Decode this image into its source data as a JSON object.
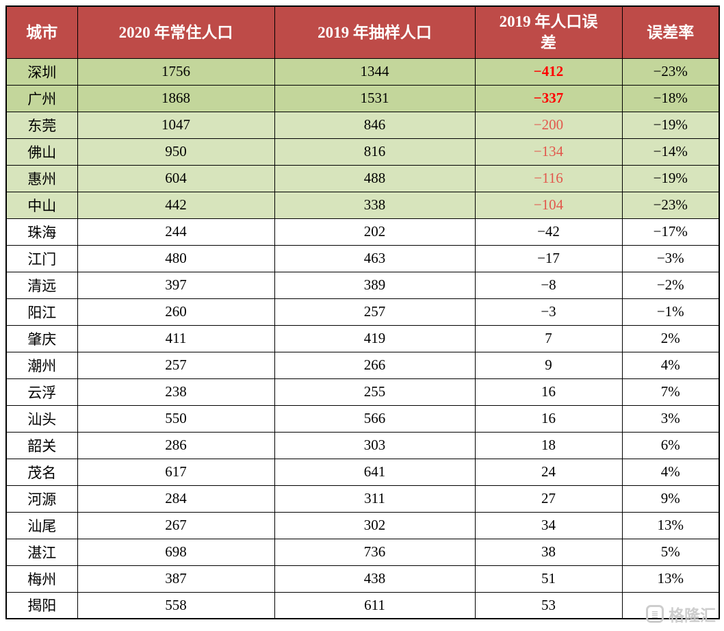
{
  "chart_data": {
    "type": "table",
    "columns": [
      "城市",
      "2020 年常住人口",
      "2019 年抽样人口",
      "2019 年人口误差",
      "误差率"
    ],
    "rows": [
      {
        "city": "深圳",
        "pop2020": "1756",
        "sample2019": "1344",
        "error": "−412",
        "rate": "−23%",
        "highlight": "green-dark",
        "error_emphasis": "bold-red"
      },
      {
        "city": "广州",
        "pop2020": "1868",
        "sample2019": "1531",
        "error": "−337",
        "rate": "−18%",
        "highlight": "green-dark",
        "error_emphasis": "bold-red"
      },
      {
        "city": "东莞",
        "pop2020": "1047",
        "sample2019": "846",
        "error": "−200",
        "rate": "−19%",
        "highlight": "green-light",
        "error_emphasis": "red"
      },
      {
        "city": "佛山",
        "pop2020": "950",
        "sample2019": "816",
        "error": "−134",
        "rate": "−14%",
        "highlight": "green-light",
        "error_emphasis": "red"
      },
      {
        "city": "惠州",
        "pop2020": "604",
        "sample2019": "488",
        "error": "−116",
        "rate": "−19%",
        "highlight": "green-light",
        "error_emphasis": "red"
      },
      {
        "city": "中山",
        "pop2020": "442",
        "sample2019": "338",
        "error": "−104",
        "rate": "−23%",
        "highlight": "green-light",
        "error_emphasis": "red"
      },
      {
        "city": "珠海",
        "pop2020": "244",
        "sample2019": "202",
        "error": "−42",
        "rate": "−17%",
        "highlight": "",
        "error_emphasis": ""
      },
      {
        "city": "江门",
        "pop2020": "480",
        "sample2019": "463",
        "error": "−17",
        "rate": "−3%",
        "highlight": "",
        "error_emphasis": ""
      },
      {
        "city": "清远",
        "pop2020": "397",
        "sample2019": "389",
        "error": "−8",
        "rate": "−2%",
        "highlight": "",
        "error_emphasis": ""
      },
      {
        "city": "阳江",
        "pop2020": "260",
        "sample2019": "257",
        "error": "−3",
        "rate": "−1%",
        "highlight": "",
        "error_emphasis": ""
      },
      {
        "city": "肇庆",
        "pop2020": "411",
        "sample2019": "419",
        "error": "7",
        "rate": "2%",
        "highlight": "",
        "error_emphasis": ""
      },
      {
        "city": "潮州",
        "pop2020": "257",
        "sample2019": "266",
        "error": "9",
        "rate": "4%",
        "highlight": "",
        "error_emphasis": ""
      },
      {
        "city": "云浮",
        "pop2020": "238",
        "sample2019": "255",
        "error": "16",
        "rate": "7%",
        "highlight": "",
        "error_emphasis": ""
      },
      {
        "city": "汕头",
        "pop2020": "550",
        "sample2019": "566",
        "error": "16",
        "rate": "3%",
        "highlight": "",
        "error_emphasis": ""
      },
      {
        "city": "韶关",
        "pop2020": "286",
        "sample2019": "303",
        "error": "18",
        "rate": "6%",
        "highlight": "",
        "error_emphasis": ""
      },
      {
        "city": "茂名",
        "pop2020": "617",
        "sample2019": "641",
        "error": "24",
        "rate": "4%",
        "highlight": "",
        "error_emphasis": ""
      },
      {
        "city": "河源",
        "pop2020": "284",
        "sample2019": "311",
        "error": "27",
        "rate": "9%",
        "highlight": "",
        "error_emphasis": ""
      },
      {
        "city": "汕尾",
        "pop2020": "267",
        "sample2019": "302",
        "error": "34",
        "rate": "13%",
        "highlight": "",
        "error_emphasis": ""
      },
      {
        "city": "湛江",
        "pop2020": "698",
        "sample2019": "736",
        "error": "38",
        "rate": "5%",
        "highlight": "",
        "error_emphasis": ""
      },
      {
        "city": "梅州",
        "pop2020": "387",
        "sample2019": "438",
        "error": "51",
        "rate": "13%",
        "highlight": "",
        "error_emphasis": ""
      },
      {
        "city": "揭阳",
        "pop2020": "558",
        "sample2019": "611",
        "error": "53",
        "rate": "",
        "highlight": "",
        "error_emphasis": ""
      }
    ],
    "colors": {
      "header_bg": "#be4b48",
      "header_text": "#ffffff",
      "row_green_dark": "#c3d69b",
      "row_green_light": "#d7e4bc",
      "error_bold_red": "#ff0000",
      "error_red": "#e2574c",
      "grid": "#000000"
    }
  },
  "watermark": {
    "text": "格隆汇"
  }
}
